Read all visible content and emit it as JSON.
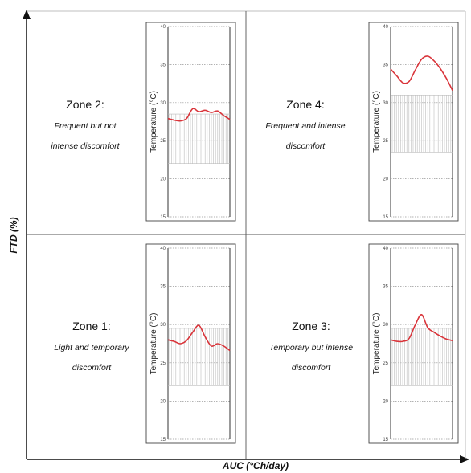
{
  "axes": {
    "x_label": "AUC (°Ch/day)",
    "y_label": "FTD (%)"
  },
  "zones": {
    "zone1": {
      "title": "Zone 1:",
      "desc1": "Light and temporary",
      "desc2": "discomfort"
    },
    "zone2": {
      "title": "Zone 2:",
      "desc1": "Frequent but not",
      "desc2": "intense discomfort"
    },
    "zone3": {
      "title": "Zone 3:",
      "desc1": "Temporary but intense",
      "desc2": "discomfort"
    },
    "zone4": {
      "title": "Zone 4:",
      "desc1": "Frequent and intense",
      "desc2": "discomfort"
    }
  },
  "colors": {
    "curve": "#d9343a",
    "hatch": "#bdbdbd",
    "frame": "#333333",
    "dotted": "#999999"
  },
  "chart_data": [
    {
      "type": "line",
      "zone": "zone2",
      "ylabel": "Temperature (°C)",
      "yticks": [
        "40",
        "35",
        "30",
        "25",
        "20",
        "15"
      ],
      "ylim": [
        15,
        40
      ],
      "band": [
        22,
        28.5
      ],
      "x": [
        0,
        0.1,
        0.2,
        0.3,
        0.4,
        0.5,
        0.6,
        0.7,
        0.8,
        0.9,
        1.0
      ],
      "values": [
        27.9,
        27.7,
        27.6,
        27.9,
        29.2,
        28.8,
        29.0,
        28.7,
        28.9,
        28.3,
        27.8
      ]
    },
    {
      "type": "line",
      "zone": "zone4",
      "ylabel": "Temperature (°C)",
      "yticks": [
        "40",
        "35",
        "30",
        "25",
        "20",
        "15"
      ],
      "ylim": [
        15,
        40
      ],
      "band": [
        23.5,
        31
      ],
      "x": [
        0,
        0.1,
        0.2,
        0.3,
        0.4,
        0.5,
        0.6,
        0.7,
        0.8,
        0.9,
        1.0
      ],
      "values": [
        34.4,
        33.5,
        32.6,
        32.8,
        34.3,
        35.7,
        36.1,
        35.5,
        34.5,
        33.2,
        31.6
      ]
    },
    {
      "type": "line",
      "zone": "zone1",
      "ylabel": "Temperature (°C)",
      "yticks": [
        "40",
        "35",
        "30",
        "25",
        "20",
        "15"
      ],
      "ylim": [
        15,
        40
      ],
      "band": [
        22,
        29.5
      ],
      "x": [
        0,
        0.1,
        0.2,
        0.3,
        0.4,
        0.5,
        0.6,
        0.7,
        0.8,
        0.9,
        1.0
      ],
      "values": [
        28.0,
        27.8,
        27.5,
        27.9,
        29.0,
        29.9,
        28.4,
        27.2,
        27.5,
        27.2,
        26.6
      ]
    },
    {
      "type": "line",
      "zone": "zone3",
      "ylabel": "Temperature (°C)",
      "yticks": [
        "40",
        "35",
        "30",
        "25",
        "20",
        "15"
      ],
      "ylim": [
        15,
        40
      ],
      "band": [
        22,
        29.5
      ],
      "x": [
        0,
        0.1,
        0.2,
        0.3,
        0.4,
        0.5,
        0.6,
        0.7,
        0.8,
        0.9,
        1.0
      ],
      "values": [
        28.0,
        27.8,
        27.8,
        28.2,
        30.0,
        31.3,
        29.6,
        29.0,
        28.5,
        28.1,
        27.9
      ]
    }
  ]
}
